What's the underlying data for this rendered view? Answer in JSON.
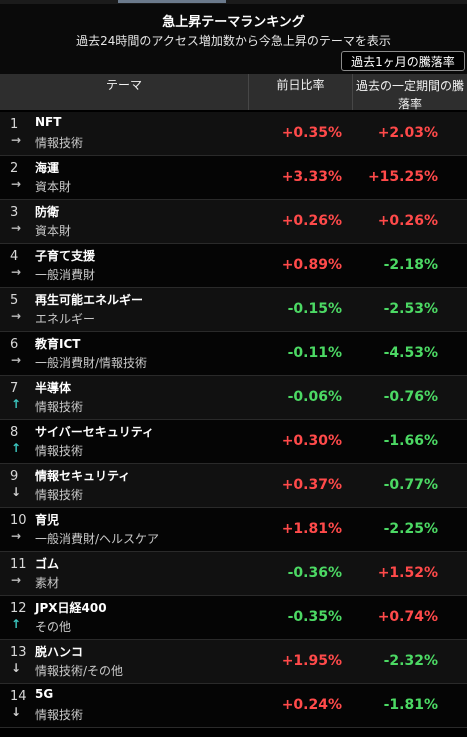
{
  "header": {
    "title": "急上昇テーマランキング",
    "subtitle": "過去24時間のアクセス増加数から今急上昇のテーマを表示",
    "period_select": "過去1ヶ月の騰落率"
  },
  "table": {
    "headers": {
      "theme": "テーマ",
      "prev_day": "前日比率",
      "period": "過去の一定期間の騰落率"
    },
    "rows": [
      {
        "rank": "1",
        "trend": "flat",
        "trend_icon": "→",
        "name": "NFT",
        "category": "情報技術",
        "prev_day": "+0.35%",
        "period": "+2.03%"
      },
      {
        "rank": "2",
        "trend": "flat",
        "trend_icon": "→",
        "name": "海運",
        "category": "資本財",
        "prev_day": "+3.33%",
        "period": "+15.25%"
      },
      {
        "rank": "3",
        "trend": "flat",
        "trend_icon": "→",
        "name": "防衛",
        "category": "資本財",
        "prev_day": "+0.26%",
        "period": "+0.26%"
      },
      {
        "rank": "4",
        "trend": "flat",
        "trend_icon": "→",
        "name": "子育て支援",
        "category": "一般消費財",
        "prev_day": "+0.89%",
        "period": "-2.18%"
      },
      {
        "rank": "5",
        "trend": "flat",
        "trend_icon": "→",
        "name": "再生可能エネルギー",
        "category": "エネルギー",
        "prev_day": "-0.15%",
        "period": "-2.53%"
      },
      {
        "rank": "6",
        "trend": "flat",
        "trend_icon": "→",
        "name": "教育ICT",
        "category": "一般消費財/情報技術",
        "prev_day": "-0.11%",
        "period": "-4.53%"
      },
      {
        "rank": "7",
        "trend": "up",
        "trend_icon": "↑",
        "name": "半導体",
        "category": "情報技術",
        "prev_day": "-0.06%",
        "period": "-0.76%"
      },
      {
        "rank": "8",
        "trend": "up",
        "trend_icon": "↑",
        "name": "サイバーセキュリティ",
        "category": "情報技術",
        "prev_day": "+0.30%",
        "period": "-1.66%"
      },
      {
        "rank": "9",
        "trend": "down",
        "trend_icon": "↓",
        "name": "情報セキュリティ",
        "category": "情報技術",
        "prev_day": "+0.37%",
        "period": "-0.77%"
      },
      {
        "rank": "10",
        "trend": "flat",
        "trend_icon": "→",
        "name": "育児",
        "category": "一般消費財/ヘルスケア",
        "prev_day": "+1.81%",
        "period": "-2.25%"
      },
      {
        "rank": "11",
        "trend": "flat",
        "trend_icon": "→",
        "name": "ゴム",
        "category": "素材",
        "prev_day": "-0.36%",
        "period": "+1.52%"
      },
      {
        "rank": "12",
        "trend": "up",
        "trend_icon": "↑",
        "name": "JPX日経400",
        "category": "その他",
        "prev_day": "-0.35%",
        "period": "+0.74%"
      },
      {
        "rank": "13",
        "trend": "down",
        "trend_icon": "↓",
        "name": "脱ハンコ",
        "category": "情報技術/その他",
        "prev_day": "+1.95%",
        "period": "-2.32%"
      },
      {
        "rank": "14",
        "trend": "down",
        "trend_icon": "↓",
        "name": "5G",
        "category": "情報技術",
        "prev_day": "+0.24%",
        "period": "-1.81%"
      }
    ]
  },
  "colors": {
    "positive": "#ff4a4a",
    "negative": "#4cd964",
    "trend_up": "#3cc7c0"
  }
}
